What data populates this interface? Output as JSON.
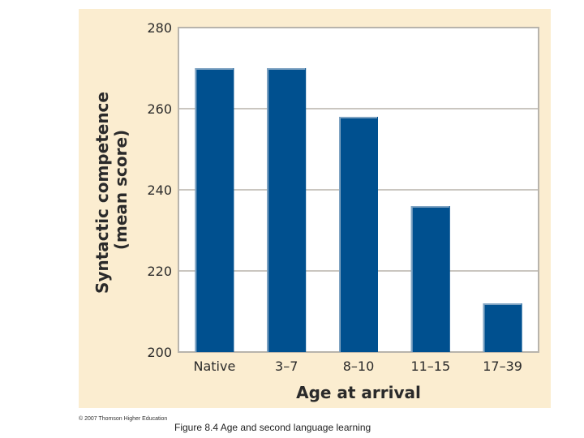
{
  "chart_data": {
    "type": "bar",
    "categories": [
      "Native",
      "3–7",
      "8–10",
      "11–15",
      "17–39"
    ],
    "values": [
      270,
      270,
      258,
      236,
      212
    ],
    "xlabel": "Age at arrival",
    "ylabel_lines": [
      "Syntactic competence",
      "(mean score)"
    ],
    "ylim": [
      200,
      280
    ],
    "yticks": [
      200,
      220,
      240,
      260,
      280
    ],
    "grid": true,
    "legend": "none"
  },
  "colors": {
    "background": "#fbedd0",
    "plot_area": "#ffffff",
    "bar_fill": "#00508f",
    "bar_highlight": "#7fa3c2",
    "grid": "#b8b4ac"
  },
  "copyright": "© 2007 Thomson Higher Education",
  "caption": "Figure 8.4  Age and second language learning"
}
